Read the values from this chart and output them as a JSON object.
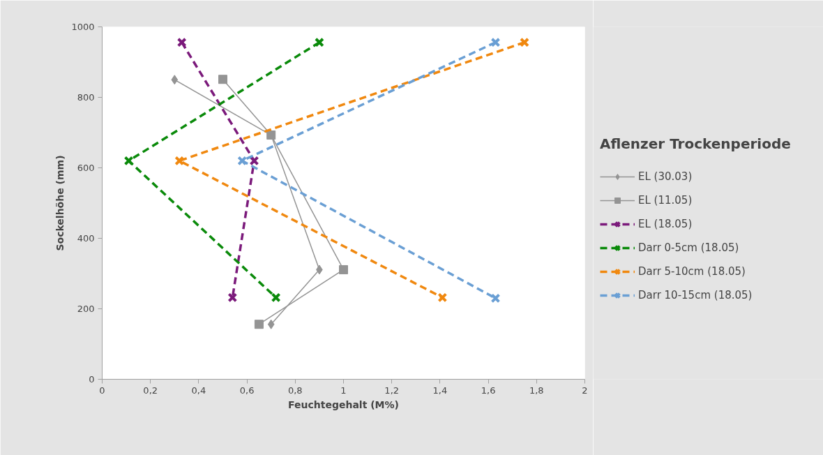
{
  "chart_data": {
    "type": "line",
    "xlabel": "Feuchtegehalt (M%)",
    "ylabel": "Sockelhöhe (mm)",
    "legend_title": "Aflenzer Trockenperiode",
    "legend": "right",
    "grid": false,
    "xlim": [
      0,
      2
    ],
    "xticks": [
      {
        "value": 0,
        "label": "0"
      },
      {
        "value": 0.2,
        "label": "0,2"
      },
      {
        "value": 0.4,
        "label": "0,4"
      },
      {
        "value": 0.6,
        "label": "0,6"
      },
      {
        "value": 0.8,
        "label": "0,8"
      },
      {
        "value": 1,
        "label": "1"
      },
      {
        "value": 1.2,
        "label": "1,2"
      },
      {
        "value": 1.4,
        "label": "1,4"
      },
      {
        "value": 1.6,
        "label": "1,6"
      },
      {
        "value": 1.8,
        "label": "1,8"
      },
      {
        "value": 2,
        "label": "2"
      }
    ],
    "ylim": [
      0,
      1000
    ],
    "yticks": [
      0,
      200,
      400,
      600,
      800,
      1000
    ],
    "series": [
      {
        "name": "EL (30.03)",
        "color": "#949494",
        "marker": "diamond",
        "line_style": "solid",
        "x": [
          0.3,
          0.7,
          0.9,
          0.7
        ],
        "values": [
          850,
          693,
          311,
          156
        ]
      },
      {
        "name": "EL (11.05)",
        "color": "#949494",
        "marker": "square",
        "line_style": "solid",
        "x": [
          0.5,
          0.7,
          1.0,
          0.65
        ],
        "values": [
          851,
          693,
          311,
          156
        ]
      },
      {
        "name": "EL (18.05)",
        "color": "#7b1a7b",
        "marker": "cross",
        "line_style": "dashed",
        "x": [
          0.33,
          0.63,
          0.54
        ],
        "values": [
          956,
          620,
          232
        ]
      },
      {
        "name": "Darr 0-5cm (18.05)",
        "color": "#0a8a0a",
        "marker": "cross",
        "line_style": "dashed",
        "x": [
          0.9,
          0.11,
          0.72
        ],
        "values": [
          956,
          620,
          232
        ]
      },
      {
        "name": "Darr 5-10cm (18.05)",
        "color": "#f0880f",
        "marker": "cross",
        "line_style": "dashed",
        "x": [
          1.75,
          0.32,
          1.41
        ],
        "values": [
          956,
          620,
          232
        ]
      },
      {
        "name": "Darr 10-15cm (18.05)",
        "color": "#6a9fd4",
        "marker": "cross",
        "line_style": "dashed",
        "x": [
          1.63,
          0.58,
          1.63
        ],
        "values": [
          956,
          620,
          230
        ]
      }
    ]
  }
}
